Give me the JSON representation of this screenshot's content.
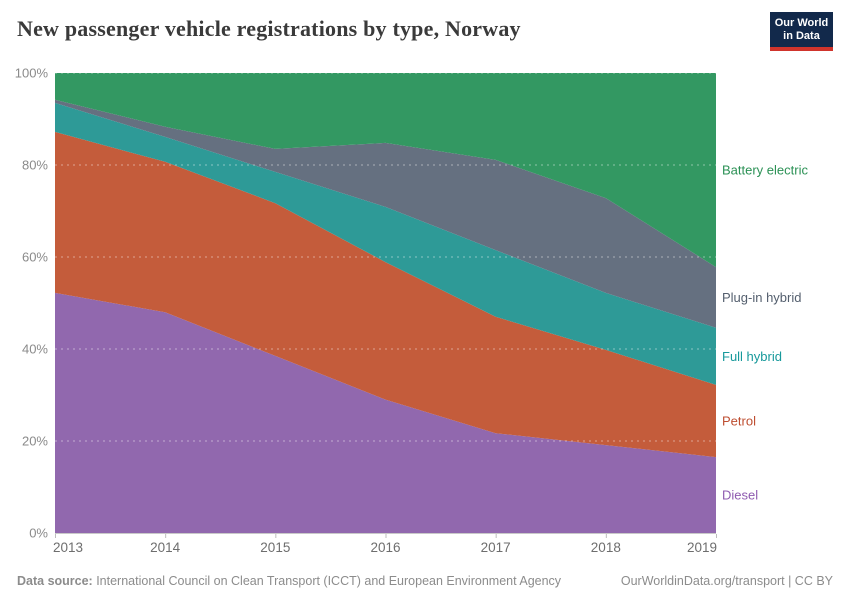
{
  "header": {
    "title": "New passenger vehicle registrations by type, Norway",
    "logo": {
      "line1": "Our World",
      "line2": "in Data",
      "bg_color": "#12294B",
      "stripe_color": "#D0342C"
    }
  },
  "footer": {
    "source_label": "Data source:",
    "source_text": " International Council on Clean Transport (ICCT) and European Environment Agency",
    "license_text": "OurWorldinData.org/transport | CC BY"
  },
  "chart_data": {
    "type": "area",
    "stacked": true,
    "unit": "%",
    "title": "New passenger vehicle registrations by type, Norway",
    "x": [
      2013,
      2014,
      2015,
      2016,
      2017,
      2018,
      2019
    ],
    "series": [
      {
        "name": "Diesel",
        "color": "#9168AE",
        "label_color": "#8F5BB0",
        "values": [
          52.2,
          48.0,
          38.5,
          29.0,
          21.7,
          19.1,
          16.5
        ]
      },
      {
        "name": "Petrol",
        "color": "#C45C3B",
        "label_color": "#BE4E31",
        "values": [
          35.0,
          32.7,
          33.2,
          29.9,
          25.3,
          20.7,
          15.7
        ]
      },
      {
        "name": "Full hybrid",
        "color": "#2E9A97",
        "label_color": "#17999B",
        "values": [
          6.3,
          5.4,
          6.8,
          12.0,
          14.5,
          12.4,
          12.4
        ]
      },
      {
        "name": "Plug-in hybrid",
        "color": "#657080",
        "label_color": "#545F6E",
        "values": [
          0.7,
          2.2,
          5.0,
          13.9,
          19.6,
          20.6,
          13.2
        ]
      },
      {
        "name": "Battery electric",
        "color": "#339862",
        "label_color": "#2B9155",
        "values": [
          5.8,
          11.7,
          16.5,
          15.2,
          18.9,
          27.2,
          42.2
        ]
      }
    ],
    "ylim": [
      0,
      100
    ],
    "yticks": [
      0,
      20,
      40,
      60,
      80,
      100
    ],
    "grid": "dashed",
    "grid_color": "rgba(255,255,255,0.45)",
    "axis_line_color": "#c9c9c9",
    "tick_mark_color": "#bdbdbd",
    "y_tick_label_color": "#8a8a8a",
    "x_tick_label_color": "#6e6e6e",
    "legend_position": "right-labels"
  }
}
